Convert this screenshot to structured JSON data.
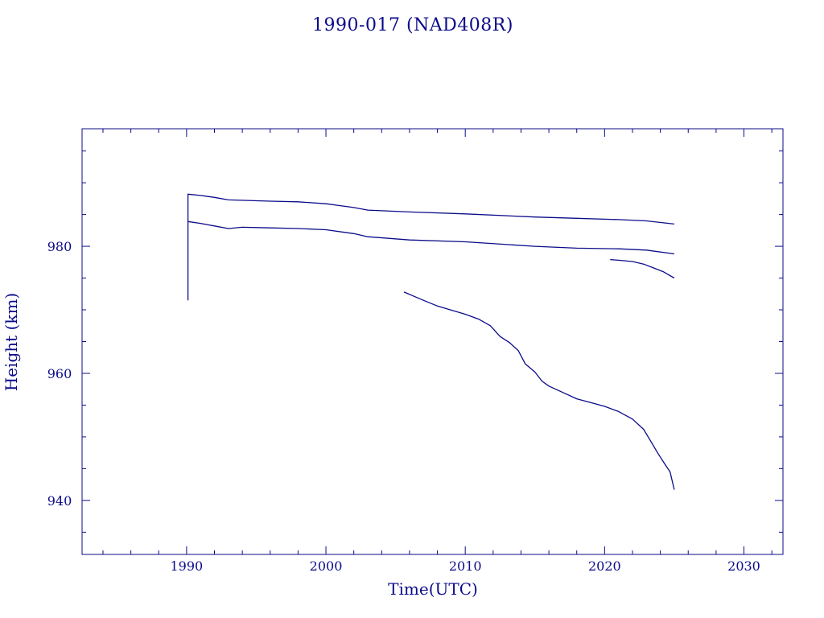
{
  "colors": {
    "ink": "#0b0b8a",
    "background": "#ffffff"
  },
  "chart_data": {
    "type": "line",
    "title": "1990-017 (NAD408R)",
    "xlabel": "Time(UTC)",
    "ylabel": "Height (km)",
    "xlim": [
      1982.5,
      2032.8
    ],
    "ylim": [
      931.5,
      998.5
    ],
    "x_ticks": [
      1990,
      2000,
      2010,
      2020,
      2030
    ],
    "x_tick_labels": [
      "1990",
      "2000",
      "2010",
      "2020",
      "2030"
    ],
    "y_ticks": [
      940,
      960,
      980
    ],
    "y_tick_labels": [
      "940",
      "960",
      "980"
    ],
    "x_minor_step": 2,
    "y_minor_step": 5,
    "grid": false,
    "legend": "none",
    "series": [
      {
        "x": [
          1990.1,
          1990.1,
          1991.0,
          1992.0,
          1993.0,
          1996.0,
          1998.0,
          2000.0,
          2002.0,
          2003.0,
          2006.0,
          2010.0,
          2015.0,
          2018.0,
          2021.0,
          2023.0,
          2025.0
        ],
        "y": [
          971.5,
          988.2,
          988.0,
          987.7,
          987.3,
          987.1,
          987.0,
          986.7,
          986.1,
          985.7,
          985.4,
          985.1,
          984.6,
          984.4,
          984.2,
          984.0,
          983.5
        ]
      },
      {
        "x": [
          1990.1,
          1991.0,
          1992.0,
          1993.0,
          1994.0,
          1996.0,
          1998.0,
          2000.0,
          2002.0,
          2003.0,
          2006.0,
          2010.0,
          2015.0,
          2018.0,
          2021.0,
          2023.0,
          2025.0
        ],
        "y": [
          983.9,
          983.6,
          983.2,
          982.8,
          983.0,
          982.9,
          982.8,
          982.6,
          982.0,
          981.5,
          981.0,
          980.7,
          980.0,
          979.7,
          979.6,
          979.4,
          978.8
        ]
      },
      {
        "x": [
          2020.4,
          2021.0,
          2022.0,
          2022.8,
          2023.5,
          2024.2,
          2025.0
        ],
        "y": [
          977.9,
          977.8,
          977.6,
          977.2,
          976.6,
          976.0,
          975.0
        ]
      },
      {
        "x": [
          2005.6,
          2007.0,
          2008.0,
          2010.0,
          2011.0,
          2011.8,
          2012.5,
          2013.2,
          2013.8,
          2014.3,
          2015.0,
          2015.5,
          2016.0,
          2017.0,
          2018.0,
          2019.0,
          2020.0,
          2021.0,
          2022.0,
          2022.8,
          2023.4,
          2023.8,
          2024.3,
          2024.7,
          2025.0
        ],
        "y": [
          972.8,
          971.5,
          970.6,
          969.3,
          968.5,
          967.5,
          965.8,
          964.8,
          963.6,
          961.5,
          960.2,
          958.8,
          958.0,
          957.0,
          956.0,
          955.4,
          954.8,
          954.0,
          952.8,
          951.2,
          949.0,
          947.5,
          945.8,
          944.5,
          941.7
        ]
      }
    ]
  }
}
